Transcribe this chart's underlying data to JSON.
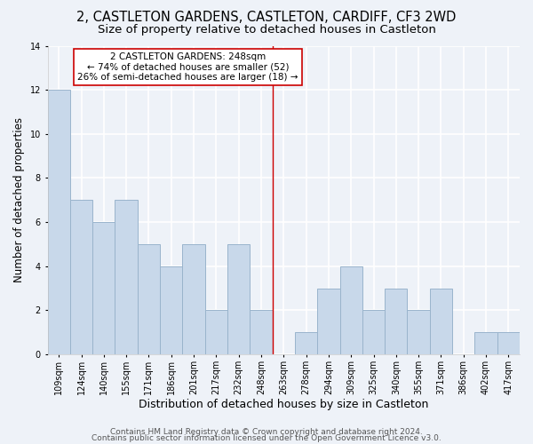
{
  "title": "2, CASTLETON GARDENS, CASTLETON, CARDIFF, CF3 2WD",
  "subtitle": "Size of property relative to detached houses in Castleton",
  "xlabel": "Distribution of detached houses by size in Castleton",
  "ylabel": "Number of detached properties",
  "bin_labels": [
    "109sqm",
    "124sqm",
    "140sqm",
    "155sqm",
    "171sqm",
    "186sqm",
    "201sqm",
    "217sqm",
    "232sqm",
    "248sqm",
    "263sqm",
    "278sqm",
    "294sqm",
    "309sqm",
    "325sqm",
    "340sqm",
    "355sqm",
    "371sqm",
    "386sqm",
    "402sqm",
    "417sqm"
  ],
  "counts": [
    12,
    7,
    6,
    7,
    5,
    4,
    5,
    2,
    5,
    2,
    0,
    1,
    3,
    4,
    2,
    3,
    2,
    3,
    0,
    1,
    1
  ],
  "bar_color": "#c8d8ea",
  "bar_edge_color": "#9ab4cc",
  "vline_bin_index": 9,
  "vline_color": "#cc0000",
  "annotation_text": "2 CASTLETON GARDENS: 248sqm\n← 74% of detached houses are smaller (52)\n26% of semi-detached houses are larger (18) →",
  "annotation_box_color": "white",
  "annotation_box_edge_color": "#cc0000",
  "ylim": [
    0,
    14
  ],
  "yticks": [
    0,
    2,
    4,
    6,
    8,
    10,
    12,
    14
  ],
  "footer1": "Contains HM Land Registry data © Crown copyright and database right 2024.",
  "footer2": "Contains public sector information licensed under the Open Government Licence v3.0.",
  "bg_color": "#eef2f8",
  "grid_color": "white",
  "title_fontsize": 10.5,
  "subtitle_fontsize": 9.5,
  "xlabel_fontsize": 9,
  "ylabel_fontsize": 8.5,
  "tick_fontsize": 7,
  "footer_fontsize": 6.5,
  "annotation_fontsize": 7.5
}
